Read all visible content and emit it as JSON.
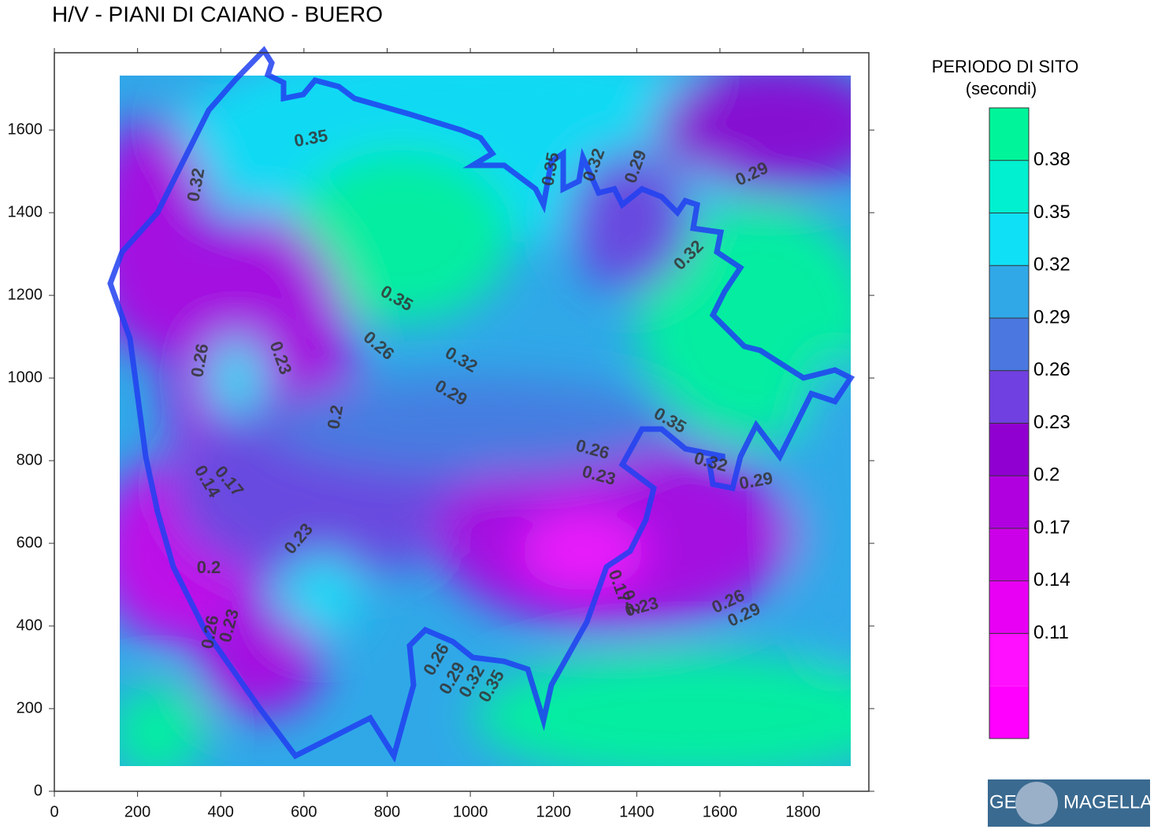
{
  "title": "H/V - PIANI DI CAIANO - BUERO",
  "x_axis": {
    "ticks": [
      0,
      200,
      400,
      600,
      800,
      1000,
      1200,
      1400,
      1600,
      1800
    ],
    "lim": [
      0,
      1958
    ]
  },
  "y_axis": {
    "ticks": [
      0,
      200,
      400,
      600,
      800,
      1000,
      1200,
      1400,
      1600
    ],
    "lim": [
      0,
      1787
    ]
  },
  "colorbar": {
    "title": "PERIODO DI SITO",
    "subtitle": "(secondi)",
    "lim": [
      0.05,
      0.41
    ],
    "ticks": [
      0.11,
      0.14,
      0.17,
      0.2,
      0.23,
      0.26,
      0.29,
      0.32,
      0.35,
      0.38
    ],
    "colors": [
      "#ff00ff",
      "#ff10ff",
      "#e800f5",
      "#cc00e8",
      "#b000e0",
      "#9000d0",
      "#7040e0",
      "#4a78e0",
      "#30a8e8",
      "#10e0f5",
      "#00f0d0",
      "#00f59a"
    ]
  },
  "contour_labels": [
    "0.35",
    "0.32",
    "0.35",
    "0.32",
    "0.29",
    "0.29",
    "0.32",
    "0.35",
    "0.26",
    "0.23",
    "0.26",
    "0.32",
    "0.29",
    "0.2",
    "0.35",
    "0.26",
    "0.23",
    "0.32",
    "0.29",
    "0.17",
    "0.14",
    "0.23",
    "0.2",
    "0.17",
    "0.2",
    "0.23",
    "0.26",
    "0.29",
    "0.26",
    "0.23",
    "0.26",
    "0.29",
    "0.32",
    "0.35"
  ],
  "logo": {
    "left": "GE",
    "right": "MAGELLAN"
  }
}
